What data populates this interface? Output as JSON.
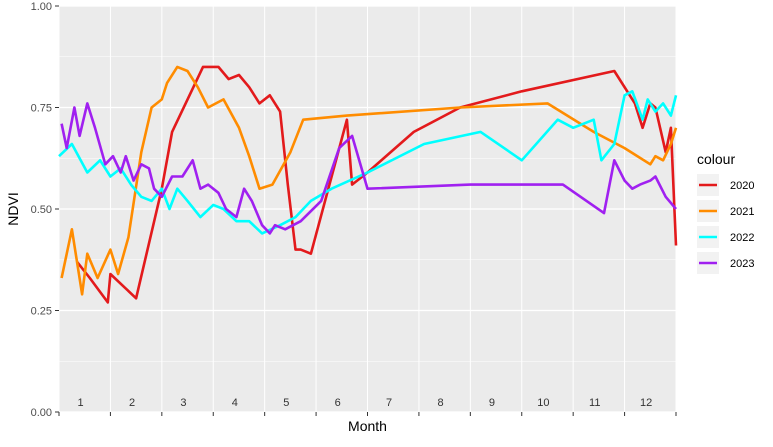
{
  "chart_data": {
    "type": "line",
    "xlabel": "Month",
    "ylabel": "NDVI",
    "xlim": [
      0,
      12
    ],
    "ylim": [
      0,
      1
    ],
    "yticks": [
      0,
      0.25,
      0.5,
      0.75,
      1
    ],
    "ytick_labels": [
      "0.00",
      "0.25",
      "0.50",
      "0.75",
      "1.00"
    ],
    "month_labels": [
      "1",
      "2",
      "3",
      "4",
      "5",
      "6",
      "7",
      "8",
      "9",
      "10",
      "11",
      "12"
    ],
    "legend_title": "colour",
    "legend_position": "right",
    "grid": true,
    "panel_background": "#ebebeb",
    "series": [
      {
        "name": "2020",
        "color": "#e31a1c",
        "x": [
          0.35,
          0.6,
          0.95,
          1.0,
          1.5,
          2.0,
          2.2,
          2.8,
          3.1,
          3.3,
          3.5,
          3.7,
          3.9,
          4.1,
          4.3,
          4.45,
          4.6,
          4.7,
          4.9,
          5.6,
          5.7,
          6.0,
          6.9,
          7.8,
          9.0,
          10.8,
          11.2,
          11.35,
          11.5,
          11.6,
          11.8,
          11.9,
          12.0
        ],
        "y": [
          0.37,
          0.33,
          0.27,
          0.34,
          0.28,
          0.55,
          0.69,
          0.85,
          0.85,
          0.82,
          0.83,
          0.8,
          0.76,
          0.78,
          0.74,
          0.56,
          0.4,
          0.4,
          0.39,
          0.72,
          0.56,
          0.59,
          0.69,
          0.75,
          0.79,
          0.84,
          0.76,
          0.7,
          0.76,
          0.75,
          0.64,
          0.7,
          0.41
        ]
      },
      {
        "name": "2021",
        "color": "#ff8c00",
        "x": [
          0.05,
          0.25,
          0.45,
          0.55,
          0.75,
          1.0,
          1.15,
          1.35,
          1.6,
          1.8,
          2.0,
          2.1,
          2.3,
          2.5,
          2.7,
          2.9,
          3.2,
          3.5,
          3.7,
          3.9,
          4.15,
          4.5,
          4.75,
          5.6,
          7.8,
          9.5,
          10.4,
          11.0,
          11.5,
          11.6,
          11.75,
          11.9,
          12.0
        ],
        "y": [
          0.33,
          0.45,
          0.29,
          0.39,
          0.33,
          0.4,
          0.34,
          0.43,
          0.64,
          0.75,
          0.77,
          0.81,
          0.85,
          0.84,
          0.8,
          0.75,
          0.77,
          0.7,
          0.63,
          0.55,
          0.56,
          0.64,
          0.72,
          0.73,
          0.75,
          0.76,
          0.69,
          0.65,
          0.61,
          0.63,
          0.62,
          0.66,
          0.7
        ]
      },
      {
        "name": "2022",
        "color": "#00ffff",
        "x": [
          0.0,
          0.25,
          0.55,
          0.8,
          1.0,
          1.2,
          1.4,
          1.6,
          1.8,
          2.0,
          2.15,
          2.3,
          2.5,
          2.75,
          3.0,
          3.2,
          3.45,
          3.7,
          3.95,
          4.3,
          4.6,
          4.9,
          5.3,
          6.0,
          7.1,
          8.2,
          9.0,
          9.7,
          10.0,
          10.4,
          10.55,
          10.8,
          11.0,
          11.15,
          11.35,
          11.45,
          11.6,
          11.75,
          11.9,
          12.0
        ],
        "y": [
          0.63,
          0.66,
          0.59,
          0.62,
          0.58,
          0.6,
          0.56,
          0.53,
          0.52,
          0.55,
          0.5,
          0.55,
          0.52,
          0.48,
          0.51,
          0.5,
          0.47,
          0.47,
          0.44,
          0.46,
          0.48,
          0.52,
          0.55,
          0.59,
          0.66,
          0.69,
          0.62,
          0.72,
          0.7,
          0.72,
          0.62,
          0.66,
          0.78,
          0.79,
          0.72,
          0.77,
          0.74,
          0.76,
          0.73,
          0.78
        ]
      },
      {
        "name": "2023",
        "color": "#a020f0",
        "x": [
          0.05,
          0.15,
          0.3,
          0.4,
          0.55,
          0.7,
          0.9,
          1.05,
          1.2,
          1.3,
          1.45,
          1.6,
          1.75,
          1.85,
          2.0,
          2.2,
          2.4,
          2.6,
          2.75,
          2.9,
          3.1,
          3.25,
          3.45,
          3.6,
          3.75,
          3.95,
          4.1,
          4.2,
          4.4,
          4.7,
          5.1,
          5.45,
          5.7,
          6.0,
          8.0,
          9.8,
          10.6,
          10.8,
          11.0,
          11.15,
          11.3,
          11.5,
          11.6,
          11.8,
          12.0
        ],
        "y": [
          0.71,
          0.65,
          0.75,
          0.68,
          0.76,
          0.7,
          0.61,
          0.63,
          0.59,
          0.63,
          0.57,
          0.61,
          0.6,
          0.55,
          0.53,
          0.58,
          0.58,
          0.62,
          0.55,
          0.56,
          0.54,
          0.5,
          0.48,
          0.55,
          0.52,
          0.46,
          0.44,
          0.46,
          0.45,
          0.47,
          0.52,
          0.65,
          0.68,
          0.55,
          0.56,
          0.56,
          0.49,
          0.62,
          0.57,
          0.55,
          0.56,
          0.57,
          0.58,
          0.53,
          0.5
        ]
      }
    ]
  }
}
